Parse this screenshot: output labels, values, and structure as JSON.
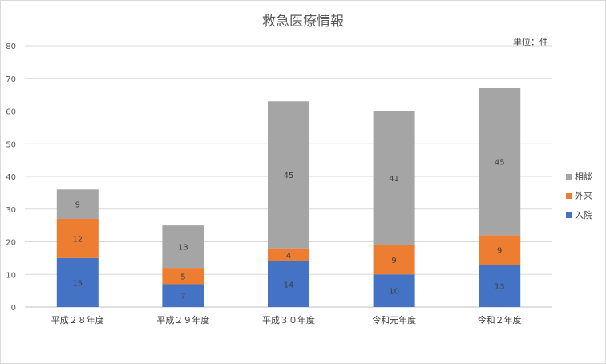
{
  "chart_data": {
    "type": "bar",
    "stacked": true,
    "title": "救急医療情報",
    "unit_label": "単位：件",
    "categories": [
      "平成２８年度",
      "平成２９年度",
      "平成３０年度",
      "令和元年度",
      "令和２年度"
    ],
    "ylim": [
      0,
      80
    ],
    "yticks": [
      0,
      10,
      20,
      30,
      40,
      50,
      60,
      70,
      80
    ],
    "grid": true,
    "legend_position": "right",
    "series": [
      {
        "name": "入院",
        "color": "#4472c4",
        "values": [
          15,
          7,
          14,
          10,
          13
        ]
      },
      {
        "name": "外来",
        "color": "#ed7d31",
        "values": [
          12,
          5,
          4,
          9,
          9
        ]
      },
      {
        "name": "相談",
        "color": "#a5a5a5",
        "values": [
          9,
          13,
          45,
          41,
          45
        ]
      }
    ]
  }
}
